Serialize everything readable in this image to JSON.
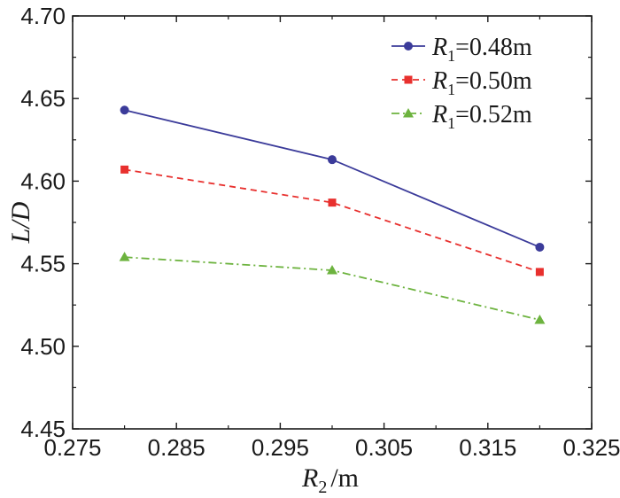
{
  "chart_data": {
    "type": "line",
    "title": "",
    "xlabel": {
      "var": "R",
      "sub": "2",
      "unit": "/m"
    },
    "ylabel": {
      "text": "L/D"
    },
    "xlim": [
      0.275,
      0.325
    ],
    "ylim": [
      4.45,
      4.7
    ],
    "xticks": [
      "0.275",
      "0.285",
      "0.295",
      "0.305",
      "0.315",
      "0.325"
    ],
    "yticks": [
      "4.45",
      "4.50",
      "4.55",
      "4.60",
      "4.65",
      "4.70"
    ],
    "x": [
      0.28,
      0.3,
      0.32
    ],
    "series": [
      {
        "name": "R1=0.48m",
        "label_var": "R",
        "label_sub": "1",
        "label_rest": "=0.48m",
        "color": "#3b3b9a",
        "dash": "solid",
        "marker": "circle",
        "values": [
          4.643,
          4.613,
          4.56
        ]
      },
      {
        "name": "R1=0.50m",
        "label_var": "R",
        "label_sub": "1",
        "label_rest": "=0.50m",
        "color": "#e8302e",
        "dash": "dashed",
        "marker": "square",
        "values": [
          4.607,
          4.587,
          4.545
        ]
      },
      {
        "name": "R1=0.52m",
        "label_var": "R",
        "label_sub": "1",
        "label_rest": "=0.52m",
        "color": "#6db33f",
        "dash": "dashdot",
        "marker": "triangle",
        "values": [
          4.554,
          4.546,
          4.516
        ]
      }
    ],
    "legend_position": "top-right",
    "grid": false
  }
}
